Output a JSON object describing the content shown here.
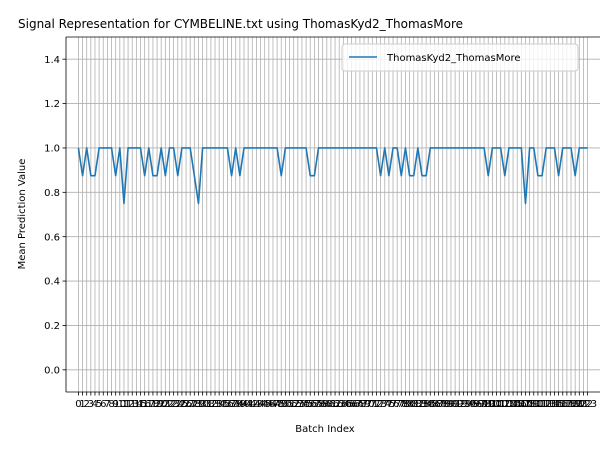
{
  "chart_data": {
    "type": "line",
    "title": "Signal Representation for CYMBELINE.txt using ThomasKyd2_ThomasMore",
    "xlabel": "Batch Index",
    "ylabel": "Mean Prediction Value",
    "xlim": [
      -3,
      126
    ],
    "ylim": [
      -0.1,
      1.5
    ],
    "yticks": [
      0.0,
      0.2,
      0.4,
      0.6,
      0.8,
      1.0,
      1.2,
      1.4
    ],
    "grid": true,
    "legend": {
      "position": "top-right"
    },
    "series": [
      {
        "name": "ThomasKyd2_ThomasMore",
        "color": "#1f77b4",
        "x": [
          0,
          1,
          2,
          3,
          4,
          5,
          6,
          7,
          8,
          9,
          10,
          11,
          12,
          13,
          14,
          15,
          16,
          17,
          18,
          19,
          20,
          21,
          22,
          23,
          24,
          25,
          26,
          27,
          28,
          29,
          30,
          31,
          32,
          33,
          34,
          35,
          36,
          37,
          38,
          39,
          40,
          41,
          42,
          43,
          44,
          45,
          46,
          47,
          48,
          49,
          50,
          51,
          52,
          53,
          54,
          55,
          56,
          57,
          58,
          59,
          60,
          61,
          62,
          63,
          64,
          65,
          66,
          67,
          68,
          69,
          70,
          71,
          72,
          73,
          74,
          75,
          76,
          77,
          78,
          79,
          80,
          81,
          82,
          83,
          84,
          85,
          86,
          87,
          88,
          89,
          90,
          91,
          92,
          93,
          94,
          95,
          96,
          97,
          98,
          99,
          100,
          101,
          102,
          103,
          104,
          105,
          106,
          107,
          108,
          109,
          110,
          111,
          112,
          113,
          114,
          115,
          116,
          117,
          118,
          119,
          120,
          121,
          122,
          123
        ],
        "values": [
          1.0,
          0.875,
          1.0,
          0.875,
          0.875,
          1.0,
          1.0,
          1.0,
          1.0,
          0.875,
          1.0,
          0.75,
          1.0,
          1.0,
          1.0,
          1.0,
          0.875,
          1.0,
          0.875,
          0.875,
          1.0,
          0.875,
          1.0,
          1.0,
          0.875,
          1.0,
          1.0,
          1.0,
          0.875,
          0.75,
          1.0,
          1.0,
          1.0,
          1.0,
          1.0,
          1.0,
          1.0,
          0.875,
          1.0,
          0.875,
          1.0,
          1.0,
          1.0,
          1.0,
          1.0,
          1.0,
          1.0,
          1.0,
          1.0,
          0.875,
          1.0,
          1.0,
          1.0,
          1.0,
          1.0,
          1.0,
          0.875,
          0.875,
          1.0,
          1.0,
          1.0,
          1.0,
          1.0,
          1.0,
          1.0,
          1.0,
          1.0,
          1.0,
          1.0,
          1.0,
          1.0,
          1.0,
          1.0,
          0.875,
          1.0,
          0.875,
          1.0,
          1.0,
          0.875,
          1.0,
          0.875,
          0.875,
          1.0,
          0.875,
          0.875,
          1.0,
          1.0,
          1.0,
          1.0,
          1.0,
          1.0,
          1.0,
          1.0,
          1.0,
          1.0,
          1.0,
          1.0,
          1.0,
          1.0,
          0.875,
          1.0,
          1.0,
          1.0,
          0.875,
          1.0,
          1.0,
          1.0,
          1.0,
          0.75,
          1.0,
          1.0,
          0.875,
          0.875,
          1.0,
          1.0,
          1.0,
          0.875,
          1.0,
          1.0,
          1.0,
          0.875,
          1.0,
          1.0,
          1.0
        ]
      }
    ]
  }
}
